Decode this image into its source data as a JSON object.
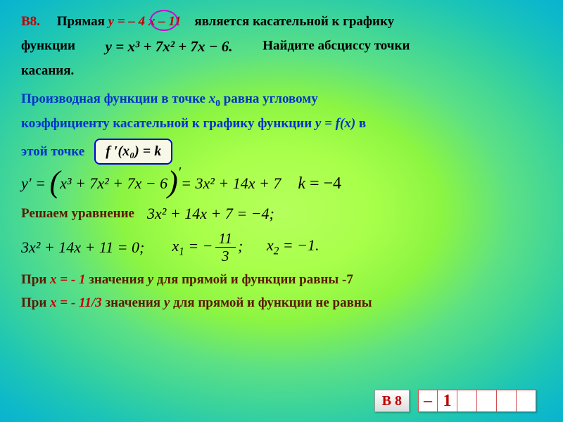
{
  "problem": {
    "label": "B8.",
    "p1_a": "Прямая",
    "line_eq": " y = – 4 x  – 11 ",
    "p1_b": "является касательной к графику",
    "p2_a": "функции",
    "p2_func": "y = x³ + 7x² + 7x − 6.",
    "p2_b": "Найдите абсциссу точки",
    "p3": "касания."
  },
  "theory": {
    "t1_a": "Производная функции  в точке ",
    "t1_x0": "x",
    "t1_sub": "0",
    "t1_b": " равна угловому",
    "t2": "коэффициенту касательной к графику функции  ",
    "t2_f": "y = f(x)",
    "t2_c": " в",
    "t3": "этой точке",
    "boxed": "f ′(x₀) = k"
  },
  "deriv": {
    "lhs": "y′ =",
    "inner": "x³ + 7x² + 7x − 6",
    "rhs": "= 3x² + 14x + 7",
    "k_lbl": "k",
    "k_val": " = −4"
  },
  "solve": {
    "label": "Решаем уравнение",
    "eq1": "3x² + 14x + 7 = −4;",
    "eq2": "3x² + 14x + 11 = 0;",
    "x1_lhs": "x₁ = −",
    "x1_num": "11",
    "x1_den": "3",
    "x1_sc": ";",
    "x2": "x₂ = −1."
  },
  "check": {
    "c1_a": "При ",
    "c1_val": "x = - 1",
    "c1_b": " значения  ",
    "c1_y": "y",
    "c1_c": " для прямой и функции  равны -7",
    "c2_a": "При ",
    "c2_val": "x = - 11/3",
    "c2_b": " значения  ",
    "c2_y": "y",
    "c2_c": " для прямой и функции  не равны"
  },
  "answer": {
    "label": "В 8",
    "cells": [
      "–",
      "1",
      "",
      "",
      "",
      ""
    ]
  },
  "colors": {
    "red": "#c00000",
    "blue": "#0033cc"
  }
}
